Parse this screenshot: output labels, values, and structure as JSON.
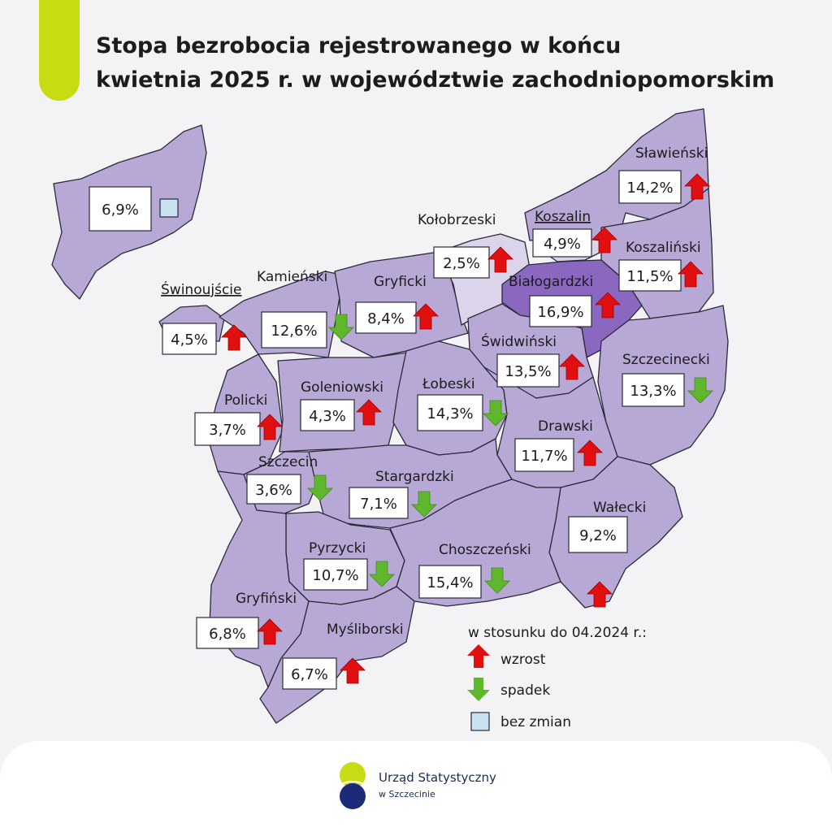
{
  "title": {
    "line1": "Stopa bezrobocia rejestrowanego w końcu",
    "line2": "kwietnia 2025 r. w województwie zachodniopomorskim"
  },
  "colors": {
    "region_fill": "#b8a8d6",
    "bialogardzki_fill": "#8a68c0",
    "kolobrzeski_fill": "#dcd4ea",
    "region_stroke": "#2a2a3a",
    "arrow_up": "#e01010",
    "arrow_down": "#5fb82c",
    "no_change": "#c8e2f2",
    "accent": "#c8dc14",
    "logo_blue": "#1c2a78"
  },
  "regions": [
    {
      "id": "swinoujscie-inset",
      "name": "",
      "value": "6,9%",
      "trend": "none"
    },
    {
      "id": "swinoujscie",
      "name": "Świnoujście",
      "value": "4,5%",
      "trend": "up"
    },
    {
      "id": "kamienski",
      "name": "Kamieński",
      "value": "12,6%",
      "trend": "down"
    },
    {
      "id": "gryficki",
      "name": "Gryficki",
      "value": "8,4%",
      "trend": "up"
    },
    {
      "id": "kolobrzeski",
      "name": "Kołobrzeski",
      "value": "2,5%",
      "trend": "up"
    },
    {
      "id": "koszalin",
      "name": "Koszalin",
      "value": "4,9%",
      "trend": "up"
    },
    {
      "id": "slawienski",
      "name": "Sławieński",
      "value": "14,2%",
      "trend": "up"
    },
    {
      "id": "koszalinski",
      "name": "Koszaliński",
      "value": "11,5%",
      "trend": "up"
    },
    {
      "id": "bialogardzki",
      "name": "Białogardzki",
      "value": "16,9%",
      "trend": "up"
    },
    {
      "id": "swidwinski",
      "name": "Świdwiński",
      "value": "13,5%",
      "trend": "up"
    },
    {
      "id": "szczecinecki",
      "name": "Szczecinecki",
      "value": "13,3%",
      "trend": "down"
    },
    {
      "id": "policki",
      "name": "Policki",
      "value": "3,7%",
      "trend": "up"
    },
    {
      "id": "goleniowski",
      "name": "Goleniowski",
      "value": "4,3%",
      "trend": "up"
    },
    {
      "id": "lobeski",
      "name": "Łobeski",
      "value": "14,3%",
      "trend": "down"
    },
    {
      "id": "drawski",
      "name": "Drawski",
      "value": "11,7%",
      "trend": "up"
    },
    {
      "id": "szczecin",
      "name": "Szczecin",
      "value": "3,6%",
      "trend": "down"
    },
    {
      "id": "stargardzki",
      "name": "Stargardzki",
      "value": "7,1%",
      "trend": "down"
    },
    {
      "id": "walecki",
      "name": "Wałecki",
      "value": "9,2%",
      "trend": "up"
    },
    {
      "id": "pyrzycki",
      "name": "Pyrzycki",
      "value": "10,7%",
      "trend": "down"
    },
    {
      "id": "choszczenski",
      "name": "Choszczeński",
      "value": "15,4%",
      "trend": "down"
    },
    {
      "id": "gryfinski",
      "name": "Gryfiński",
      "value": "6,8%",
      "trend": "up"
    },
    {
      "id": "mysliborski",
      "name": "Myśliborski",
      "value": "6,7%",
      "trend": "up"
    }
  ],
  "legend": {
    "title": "w stosunku do 04.2024 r.:",
    "increase": "wzrost",
    "decrease": "spadek",
    "no_change": "bez zmian"
  },
  "footer": {
    "institution": "Urząd Statystyczny",
    "city": "w Szczecinie"
  }
}
